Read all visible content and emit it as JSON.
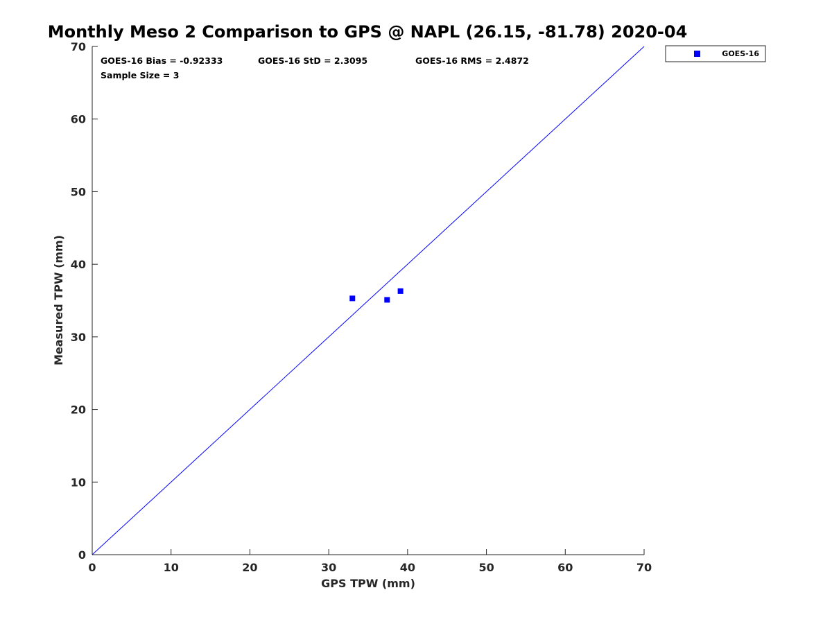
{
  "chart_data": {
    "type": "scatter",
    "title": "Monthly Meso 2 Comparison to GPS @ NAPL (26.15, -81.78) 2020-04",
    "xlabel": "GPS TPW (mm)",
    "ylabel": "Measured TPW (mm)",
    "xlim": [
      0,
      70
    ],
    "ylim": [
      0,
      70
    ],
    "xticks": [
      0,
      10,
      20,
      30,
      40,
      50,
      60,
      70
    ],
    "yticks": [
      0,
      10,
      20,
      30,
      40,
      50,
      60,
      70
    ],
    "grid": false,
    "legend_position": "outside-top-right",
    "reference_line": {
      "x": [
        0,
        70
      ],
      "y": [
        0,
        70
      ],
      "color": "#0000ff"
    },
    "series": [
      {
        "name": "GOES-16",
        "marker": "square",
        "color": "#0000ff",
        "points": [
          {
            "x": 33.0,
            "y": 35.3
          },
          {
            "x": 37.4,
            "y": 35.1
          },
          {
            "x": 39.1,
            "y": 36.3
          }
        ]
      }
    ],
    "annotations": {
      "bias": "GOES-16 Bias = -0.92333",
      "std": "GOES-16 StD = 2.3095",
      "rms": "GOES-16 RMS = 2.4872",
      "sample_size": "Sample Size = 3"
    }
  }
}
